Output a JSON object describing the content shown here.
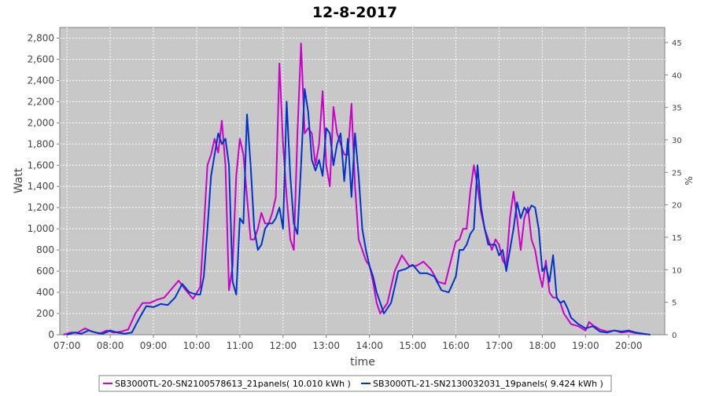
{
  "chart_data": {
    "type": "line",
    "title": "12-8-2017",
    "xlabel": "time",
    "ylabel": "Watt",
    "y2label": "%",
    "x_ticks": [
      "07:00",
      "08:00",
      "09:00",
      "10:00",
      "11:00",
      "12:00",
      "13:00",
      "14:00",
      "15:00",
      "16:00",
      "17:00",
      "18:00",
      "19:00",
      "20:00"
    ],
    "x_range": [
      "06:50",
      "20:50"
    ],
    "ylim": [
      0,
      2900
    ],
    "y_ticks": [
      "0",
      "200",
      "400",
      "600",
      "800",
      "1,000",
      "1,200",
      "1,400",
      "1,600",
      "1,800",
      "2,000",
      "2,200",
      "2,400",
      "2,600",
      "2,800"
    ],
    "y2lim": [
      0,
      47.3
    ],
    "y2_ticks": [
      "0",
      "5",
      "10",
      "15",
      "20",
      "25",
      "30",
      "35",
      "40",
      "45"
    ],
    "grid": true,
    "legend_placement": "bottom",
    "colors": {
      "plot_bg": "#c8c8c8",
      "grid": "#ffffff"
    },
    "series": [
      {
        "name": "SB3000TL-20-SN2100578613_21panels( 10.010 kWh )",
        "color": "#cc00cc",
        "points": [
          [
            "06:55",
            0
          ],
          [
            "07:05",
            20
          ],
          [
            "07:15",
            20
          ],
          [
            "07:25",
            60
          ],
          [
            "07:35",
            30
          ],
          [
            "07:45",
            10
          ],
          [
            "07:55",
            40
          ],
          [
            "08:05",
            20
          ],
          [
            "08:15",
            30
          ],
          [
            "08:25",
            50
          ],
          [
            "08:35",
            200
          ],
          [
            "08:45",
            300
          ],
          [
            "08:55",
            300
          ],
          [
            "09:05",
            330
          ],
          [
            "09:15",
            350
          ],
          [
            "09:25",
            430
          ],
          [
            "09:35",
            510
          ],
          [
            "09:45",
            420
          ],
          [
            "09:55",
            340
          ],
          [
            "10:05",
            450
          ],
          [
            "10:10",
            1000
          ],
          [
            "10:15",
            1600
          ],
          [
            "10:20",
            1700
          ],
          [
            "10:25",
            1850
          ],
          [
            "10:30",
            1720
          ],
          [
            "10:35",
            2020
          ],
          [
            "10:40",
            1600
          ],
          [
            "10:45",
            420
          ],
          [
            "10:50",
            650
          ],
          [
            "10:55",
            1500
          ],
          [
            "11:00",
            1850
          ],
          [
            "11:05",
            1700
          ],
          [
            "11:10",
            1300
          ],
          [
            "11:15",
            900
          ],
          [
            "11:20",
            900
          ],
          [
            "11:25",
            1000
          ],
          [
            "11:30",
            1150
          ],
          [
            "11:35",
            1050
          ],
          [
            "11:40",
            1050
          ],
          [
            "11:45",
            1150
          ],
          [
            "11:50",
            1300
          ],
          [
            "11:55",
            2560
          ],
          [
            "12:00",
            1800
          ],
          [
            "12:05",
            1300
          ],
          [
            "12:10",
            900
          ],
          [
            "12:15",
            800
          ],
          [
            "12:20",
            1900
          ],
          [
            "12:25",
            2750
          ],
          [
            "12:30",
            1900
          ],
          [
            "12:35",
            1950
          ],
          [
            "12:40",
            1900
          ],
          [
            "12:45",
            1600
          ],
          [
            "12:50",
            1800
          ],
          [
            "12:55",
            2300
          ],
          [
            "13:00",
            1600
          ],
          [
            "13:05",
            1400
          ],
          [
            "13:10",
            2150
          ],
          [
            "13:15",
            1900
          ],
          [
            "13:20",
            1800
          ],
          [
            "13:25",
            1700
          ],
          [
            "13:30",
            1700
          ],
          [
            "13:35",
            2180
          ],
          [
            "13:40",
            1400
          ],
          [
            "13:45",
            900
          ],
          [
            "13:50",
            800
          ],
          [
            "13:55",
            700
          ],
          [
            "14:00",
            650
          ],
          [
            "14:05",
            500
          ],
          [
            "14:10",
            300
          ],
          [
            "14:15",
            200
          ],
          [
            "14:25",
            300
          ],
          [
            "14:35",
            600
          ],
          [
            "14:45",
            750
          ],
          [
            "14:55",
            650
          ],
          [
            "15:05",
            650
          ],
          [
            "15:15",
            690
          ],
          [
            "15:25",
            620
          ],
          [
            "15:35",
            500
          ],
          [
            "15:45",
            480
          ],
          [
            "15:55",
            750
          ],
          [
            "16:00",
            880
          ],
          [
            "16:05",
            900
          ],
          [
            "16:10",
            1000
          ],
          [
            "16:15",
            1000
          ],
          [
            "16:20",
            1350
          ],
          [
            "16:25",
            1600
          ],
          [
            "16:30",
            1400
          ],
          [
            "16:35",
            1150
          ],
          [
            "16:40",
            1000
          ],
          [
            "16:45",
            900
          ],
          [
            "16:50",
            800
          ],
          [
            "16:55",
            900
          ],
          [
            "17:00",
            850
          ],
          [
            "17:05",
            700
          ],
          [
            "17:10",
            650
          ],
          [
            "17:15",
            1100
          ],
          [
            "17:20",
            1350
          ],
          [
            "17:25",
            1100
          ],
          [
            "17:30",
            800
          ],
          [
            "17:35",
            1100
          ],
          [
            "17:40",
            1200
          ],
          [
            "17:45",
            900
          ],
          [
            "17:50",
            800
          ],
          [
            "17:55",
            600
          ],
          [
            "18:00",
            450
          ],
          [
            "18:05",
            700
          ],
          [
            "18:10",
            400
          ],
          [
            "18:15",
            350
          ],
          [
            "18:20",
            350
          ],
          [
            "18:25",
            300
          ],
          [
            "18:30",
            200
          ],
          [
            "18:35",
            150
          ],
          [
            "18:40",
            100
          ],
          [
            "18:50",
            80
          ],
          [
            "19:00",
            40
          ],
          [
            "19:05",
            120
          ],
          [
            "19:10",
            90
          ],
          [
            "19:20",
            50
          ],
          [
            "19:30",
            30
          ],
          [
            "19:40",
            40
          ],
          [
            "19:50",
            20
          ],
          [
            "20:00",
            30
          ],
          [
            "20:10",
            15
          ],
          [
            "20:20",
            10
          ],
          [
            "20:25",
            0
          ]
        ]
      },
      {
        "name": "SB3000TL-21-SN2130032031_19panels( 9.424 kWh )",
        "color": "#0033cc",
        "points": [
          [
            "07:00",
            0
          ],
          [
            "07:10",
            20
          ],
          [
            "07:20",
            10
          ],
          [
            "07:30",
            40
          ],
          [
            "07:40",
            20
          ],
          [
            "07:50",
            10
          ],
          [
            "08:00",
            40
          ],
          [
            "08:10",
            20
          ],
          [
            "08:20",
            10
          ],
          [
            "08:30",
            20
          ],
          [
            "08:40",
            150
          ],
          [
            "08:50",
            270
          ],
          [
            "09:00",
            260
          ],
          [
            "09:10",
            290
          ],
          [
            "09:20",
            280
          ],
          [
            "09:30",
            350
          ],
          [
            "09:40",
            480
          ],
          [
            "09:50",
            400
          ],
          [
            "10:00",
            380
          ],
          [
            "10:05",
            380
          ],
          [
            "10:10",
            550
          ],
          [
            "10:15",
            1000
          ],
          [
            "10:20",
            1500
          ],
          [
            "10:25",
            1700
          ],
          [
            "10:30",
            1900
          ],
          [
            "10:35",
            1800
          ],
          [
            "10:40",
            1850
          ],
          [
            "10:45",
            1600
          ],
          [
            "10:50",
            500
          ],
          [
            "10:55",
            380
          ],
          [
            "11:00",
            1100
          ],
          [
            "11:05",
            1050
          ],
          [
            "11:10",
            2080
          ],
          [
            "11:15",
            1600
          ],
          [
            "11:20",
            1000
          ],
          [
            "11:25",
            800
          ],
          [
            "11:30",
            850
          ],
          [
            "11:35",
            1000
          ],
          [
            "11:40",
            1050
          ],
          [
            "11:45",
            1050
          ],
          [
            "11:50",
            1100
          ],
          [
            "11:55",
            1200
          ],
          [
            "12:00",
            1000
          ],
          [
            "12:05",
            2200
          ],
          [
            "12:10",
            1500
          ],
          [
            "12:15",
            1050
          ],
          [
            "12:20",
            950
          ],
          [
            "12:25",
            1600
          ],
          [
            "12:30",
            2320
          ],
          [
            "12:35",
            2100
          ],
          [
            "12:40",
            1650
          ],
          [
            "12:45",
            1550
          ],
          [
            "12:50",
            1650
          ],
          [
            "12:55",
            1500
          ],
          [
            "13:00",
            1950
          ],
          [
            "13:05",
            1900
          ],
          [
            "13:10",
            1600
          ],
          [
            "13:15",
            1800
          ],
          [
            "13:20",
            1900
          ],
          [
            "13:25",
            1450
          ],
          [
            "13:30",
            1850
          ],
          [
            "13:35",
            1300
          ],
          [
            "13:40",
            1900
          ],
          [
            "13:45",
            1500
          ],
          [
            "13:50",
            1000
          ],
          [
            "13:55",
            800
          ],
          [
            "14:00",
            650
          ],
          [
            "14:05",
            550
          ],
          [
            "14:10",
            400
          ],
          [
            "14:20",
            200
          ],
          [
            "14:30",
            300
          ],
          [
            "14:40",
            600
          ],
          [
            "14:50",
            620
          ],
          [
            "15:00",
            660
          ],
          [
            "15:10",
            580
          ],
          [
            "15:20",
            580
          ],
          [
            "15:30",
            550
          ],
          [
            "15:40",
            420
          ],
          [
            "15:50",
            400
          ],
          [
            "16:00",
            550
          ],
          [
            "16:05",
            800
          ],
          [
            "16:10",
            800
          ],
          [
            "16:15",
            850
          ],
          [
            "16:20",
            950
          ],
          [
            "16:25",
            1000
          ],
          [
            "16:30",
            1600
          ],
          [
            "16:35",
            1200
          ],
          [
            "16:40",
            1000
          ],
          [
            "16:45",
            850
          ],
          [
            "16:50",
            850
          ],
          [
            "16:55",
            850
          ],
          [
            "17:00",
            750
          ],
          [
            "17:05",
            800
          ],
          [
            "17:10",
            600
          ],
          [
            "17:15",
            800
          ],
          [
            "17:20",
            1000
          ],
          [
            "17:25",
            1250
          ],
          [
            "17:30",
            1100
          ],
          [
            "17:35",
            1200
          ],
          [
            "17:40",
            1150
          ],
          [
            "17:45",
            1220
          ],
          [
            "17:50",
            1200
          ],
          [
            "17:55",
            1000
          ],
          [
            "18:00",
            600
          ],
          [
            "18:05",
            650
          ],
          [
            "18:10",
            500
          ],
          [
            "18:15",
            750
          ],
          [
            "18:20",
            350
          ],
          [
            "18:25",
            300
          ],
          [
            "18:30",
            320
          ],
          [
            "18:35",
            250
          ],
          [
            "18:40",
            160
          ],
          [
            "18:50",
            100
          ],
          [
            "19:00",
            60
          ],
          [
            "19:10",
            80
          ],
          [
            "19:20",
            30
          ],
          [
            "19:30",
            20
          ],
          [
            "19:40",
            40
          ],
          [
            "19:50",
            30
          ],
          [
            "20:00",
            40
          ],
          [
            "20:10",
            20
          ],
          [
            "20:20",
            10
          ],
          [
            "20:30",
            0
          ]
        ]
      }
    ]
  }
}
